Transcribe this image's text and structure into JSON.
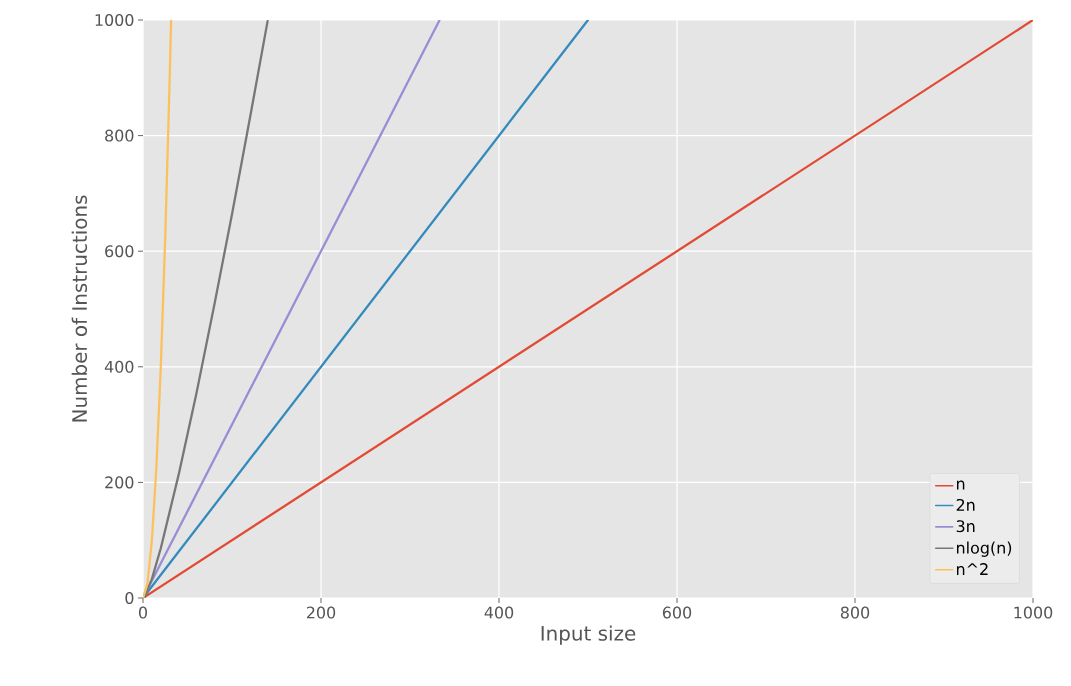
{
  "chart_data": {
    "type": "line",
    "xlabel": "Input size",
    "ylabel": "Number of Instructions",
    "xlim": [
      0,
      1000
    ],
    "ylim": [
      0,
      1000
    ],
    "xticks": [
      0,
      200,
      400,
      600,
      800,
      1000
    ],
    "yticks": [
      0,
      200,
      400,
      600,
      800,
      1000
    ],
    "grid": true,
    "legend": "bottom right",
    "marker": "none",
    "line_style": "solid",
    "series": [
      {
        "name": "n",
        "color": "#e24a33",
        "x": [
          0,
          1000
        ],
        "values": [
          0,
          1000
        ]
      },
      {
        "name": "2n",
        "color": "#348abd",
        "x": [
          0,
          500
        ],
        "values": [
          0,
          1000
        ]
      },
      {
        "name": "3n",
        "color": "#988ed5",
        "x": [
          0,
          333
        ],
        "values": [
          0,
          999
        ]
      },
      {
        "name": "nlog(n)",
        "color": "#777777",
        "x": [
          1,
          10,
          20,
          40,
          60,
          80,
          100,
          120,
          140
        ],
        "values": [
          0,
          33,
          86,
          213,
          354,
          506,
          664,
          829,
          998
        ]
      },
      {
        "name": "n^2",
        "color": "#fbc15e",
        "x": [
          0,
          5,
          10,
          15,
          20,
          25,
          30,
          31.6
        ],
        "values": [
          0,
          25,
          100,
          225,
          400,
          625,
          900,
          1000
        ]
      }
    ]
  }
}
